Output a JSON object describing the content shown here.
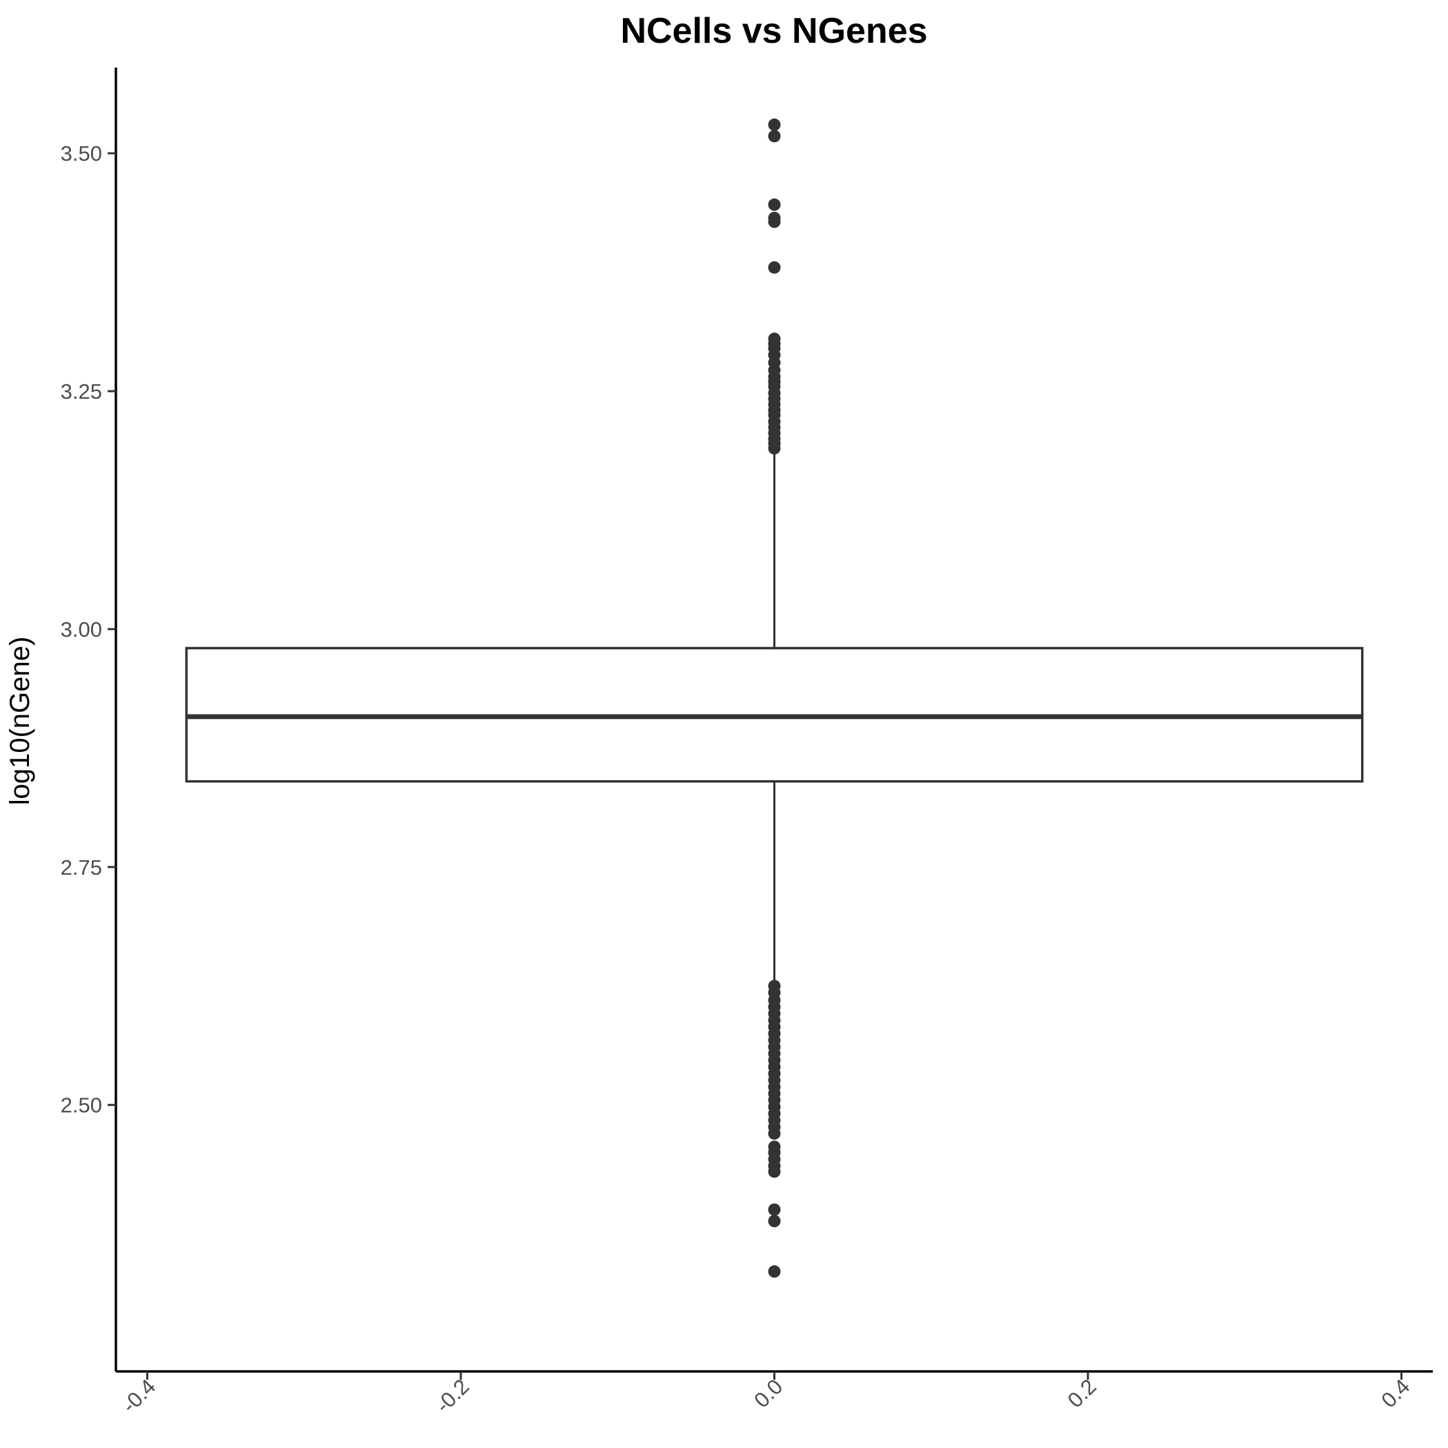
{
  "chart_data": {
    "type": "boxplot",
    "title": "NCells vs NGenes",
    "xlabel": "",
    "ylabel": "log10(nGene)",
    "xlim": [
      -0.42,
      0.42
    ],
    "ylim": [
      2.22,
      3.59
    ],
    "x_ticks": [
      -0.4,
      -0.2,
      0.0,
      0.2,
      0.4
    ],
    "x_tick_labels": [
      "-0.4",
      "-0.2",
      "0.0",
      "0.2",
      "0.4"
    ],
    "y_ticks": [
      2.5,
      2.75,
      3.0,
      3.25,
      3.5
    ],
    "y_tick_labels": [
      "2.50",
      "2.75",
      "3.00",
      "3.25",
      "3.50"
    ],
    "grid": false,
    "box": {
      "x_center": 0.0,
      "x_left": -0.375,
      "x_right": 0.375,
      "q1": 2.84,
      "median": 2.908,
      "q3": 2.98,
      "whisker_low": 2.625,
      "whisker_high": 3.19
    },
    "outliers": [
      3.53,
      3.518,
      3.446,
      3.432,
      3.428,
      3.38,
      3.305,
      3.3,
      3.295,
      3.288,
      3.28,
      3.272,
      3.265,
      3.26,
      3.255,
      3.248,
      3.242,
      3.236,
      3.23,
      3.225,
      3.218,
      3.212,
      3.206,
      3.2,
      3.195,
      3.19,
      2.625,
      2.618,
      2.61,
      2.603,
      2.596,
      2.589,
      2.582,
      2.575,
      2.568,
      2.561,
      2.554,
      2.547,
      2.54,
      2.533,
      2.526,
      2.519,
      2.512,
      2.505,
      2.498,
      2.491,
      2.484,
      2.477,
      2.47,
      2.456,
      2.45,
      2.443,
      2.436,
      2.43,
      2.39,
      2.378,
      2.325
    ],
    "colors": {
      "box_outline": "#333333",
      "points": "#333333",
      "axis": "#000000",
      "tick_text": "#4d4d4d"
    }
  }
}
